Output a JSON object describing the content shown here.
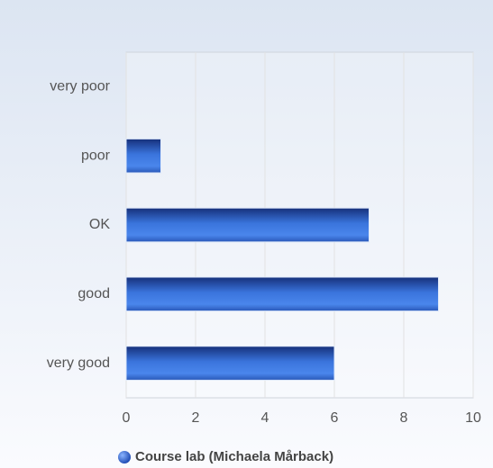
{
  "chart_data": {
    "type": "bar",
    "orientation": "horizontal",
    "categories": [
      "very poor",
      "poor",
      "OK",
      "good",
      "very good"
    ],
    "series": [
      {
        "name": "Course lab (Michaela Mårback)",
        "color": "#2f66d0",
        "values": [
          0,
          1,
          7,
          9,
          6
        ]
      }
    ],
    "xlim": [
      0,
      10
    ],
    "xticks": [
      0,
      2,
      4,
      6,
      8,
      10
    ],
    "grid": true,
    "legend": "bottom"
  }
}
